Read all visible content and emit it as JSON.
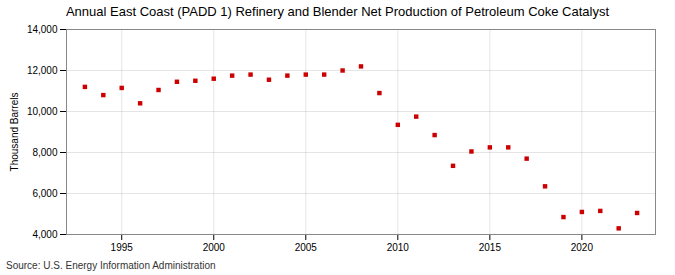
{
  "chart_data": {
    "type": "scatter",
    "title": "Annual East Coast (PADD 1) Refinery and Blender Net Production of Petroleum Coke Catalyst",
    "ylabel": "Thousand Barrels",
    "annotations": [
      "Source: U.S. Energy Information Administration"
    ],
    "x": [
      1993,
      1994,
      1995,
      1996,
      1997,
      1998,
      1999,
      2000,
      2001,
      2002,
      2003,
      2004,
      2005,
      2006,
      2007,
      2008,
      2009,
      2010,
      2011,
      2012,
      2013,
      2014,
      2015,
      2016,
      2017,
      2018,
      2019,
      2020,
      2021,
      2022,
      2023
    ],
    "values": [
      11200,
      10800,
      11150,
      10400,
      11050,
      11450,
      11500,
      11600,
      11750,
      11800,
      11550,
      11750,
      11800,
      11800,
      12000,
      12200,
      10900,
      9350,
      9750,
      8850,
      7350,
      8050,
      8250,
      8250,
      7700,
      6350,
      4850,
      5100,
      5150,
      4300,
      5050
    ],
    "color": "#cc0000",
    "marker": "square",
    "xlim": [
      1992,
      2024
    ],
    "xticks": [
      1995,
      2000,
      2005,
      2010,
      2015,
      2020
    ],
    "ylim": [
      4000,
      14000
    ],
    "yticks": [
      {
        "value": 4000,
        "label": "4,000"
      },
      {
        "value": 6000,
        "label": "6,000"
      },
      {
        "value": 8000,
        "label": "8,000"
      },
      {
        "value": 10000,
        "label": "10,000"
      },
      {
        "value": 12000,
        "label": "12,000"
      },
      {
        "value": 14000,
        "label": "14,000"
      }
    ],
    "grid": true
  }
}
